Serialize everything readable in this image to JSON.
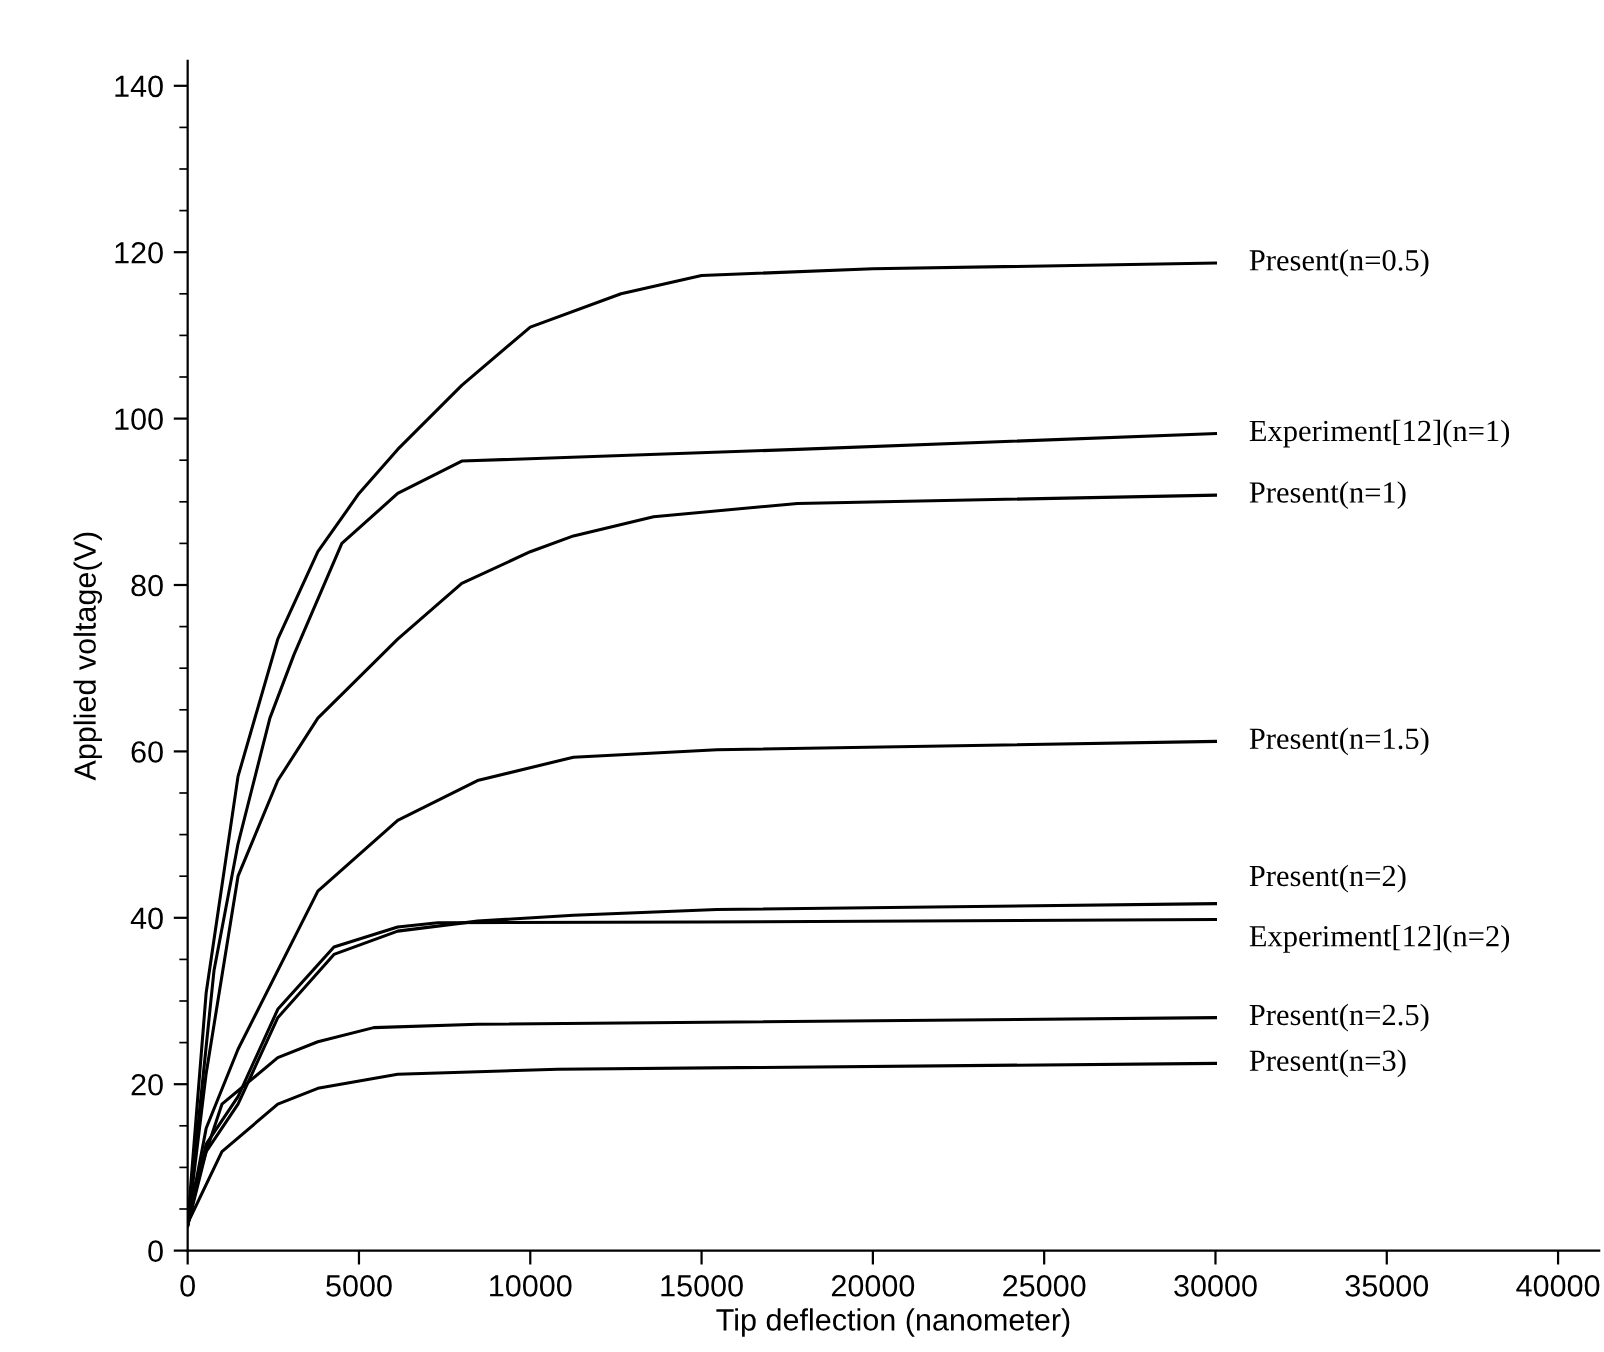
{
  "chart_data": {
    "type": "line",
    "xlabel": "Tip deflection (nanometer)",
    "ylabel": "Applied voltage(V)",
    "xlim": [
      0,
      41200
    ],
    "ylim": [
      0,
      143
    ],
    "xticks": [
      0,
      5000,
      10000,
      15000,
      20000,
      25000,
      30000,
      35000,
      40000
    ],
    "yticks": [
      0,
      {
        "value": 5,
        "label": null
      },
      {
        "value": 10,
        "label": null
      },
      {
        "value": 15,
        "label": null
      },
      20,
      {
        "value": 25,
        "label": null
      },
      {
        "value": 30,
        "label": null
      },
      {
        "value": 35,
        "label": null
      },
      40,
      {
        "value": 45,
        "label": null
      },
      {
        "value": 50,
        "label": null
      },
      {
        "value": 55,
        "label": null
      },
      60,
      {
        "value": 65,
        "label": null
      },
      {
        "value": 70,
        "label": null
      },
      {
        "value": 75,
        "label": null
      },
      80,
      {
        "value": 85,
        "label": null
      },
      {
        "value": 90,
        "label": null
      },
      {
        "value": 95,
        "label": null
      },
      100,
      {
        "value": 105,
        "label": null
      },
      {
        "value": 110,
        "label": null
      },
      {
        "value": 115,
        "label": null
      },
      120,
      {
        "value": 125,
        "label": null
      },
      {
        "value": 130,
        "label": null
      },
      {
        "value": 135,
        "label": null
      },
      140
    ],
    "grid": false,
    "marker": "none",
    "line_style": "solid",
    "series": [
      {
        "name": "Present(n=0.5)",
        "color": "#000000",
        "x": [
          0,
          540,
          1470,
          2630,
          3800,
          5000,
          6130,
          8000,
          10000,
          12650,
          15000,
          20000,
          30000
        ],
        "values": [
          3.3,
          31,
          57,
          73.5,
          84,
          91,
          96.3,
          104,
          111,
          115,
          117.2,
          118,
          118.7
        ]
      },
      {
        "name": "Experiment[12](n=1)",
        "color": "#000000",
        "x": [
          0,
          770,
          1470,
          2400,
          3100,
          4500,
          6130,
          8000,
          17800,
          30000
        ],
        "values": [
          3,
          33.7,
          48.9,
          64,
          71.6,
          85,
          91,
          94.9,
          96.3,
          98.2
        ]
      },
      {
        "name": "Present(n=1)",
        "color": "#000000",
        "x": [
          0,
          540,
          1470,
          2630,
          3800,
          6130,
          8000,
          10000,
          11260,
          13600,
          17800,
          30000
        ],
        "values": [
          3,
          21.3,
          45,
          56.5,
          64,
          73.5,
          80.2,
          84,
          85.9,
          88.2,
          89.8,
          90.8
        ]
      },
      {
        "name": "Present(n=1.5)",
        "color": "#000000",
        "x": [
          0,
          540,
          1470,
          3800,
          6130,
          8460,
          11260,
          15450,
          30000
        ],
        "values": [
          3,
          14.7,
          24.2,
          43.2,
          51.7,
          56.5,
          59.3,
          60.2,
          61.2
        ]
      },
      {
        "name": "Present(n=2)",
        "color": "#000000",
        "x": [
          0,
          540,
          1470,
          2630,
          4270,
          6130,
          8460,
          11260,
          15450,
          30000
        ],
        "values": [
          3,
          11.9,
          17.6,
          28,
          35.6,
          38.4,
          39.6,
          40.3,
          41,
          41.7
        ]
      },
      {
        "name": "Experiment[12](n=2)",
        "color": "#000000",
        "x": [
          0,
          540,
          1470,
          2630,
          4270,
          6130,
          7300,
          15000,
          30000
        ],
        "values": [
          3,
          12.8,
          18.5,
          29,
          36.5,
          38.9,
          39.4,
          39.5,
          39.8
        ]
      },
      {
        "name": "Present(n=2.5)",
        "color": "#000000",
        "x": [
          0,
          1000,
          2630,
          3800,
          5430,
          8460,
          30000
        ],
        "values": [
          5.2,
          17.6,
          23.2,
          25.1,
          26.8,
          27.2,
          28
        ]
      },
      {
        "name": "Present(n=3)",
        "color": "#000000",
        "x": [
          0,
          1000,
          2630,
          3800,
          6130,
          10800,
          30000
        ],
        "values": [
          3.3,
          11.9,
          17.6,
          19.5,
          21.2,
          21.8,
          22.5
        ]
      }
    ]
  }
}
